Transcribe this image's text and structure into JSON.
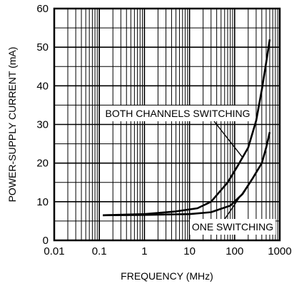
{
  "chart_data": {
    "type": "line",
    "title": "",
    "xlabel": "FREQUENCY (MHz)",
    "ylabel": "POWER-SUPPLY CURRENT (mA)",
    "x_scale": "log",
    "xlim": [
      0.01,
      1000
    ],
    "ylim": [
      0,
      60
    ],
    "x_ticks": [
      "0.01",
      "0.1",
      "1",
      "10",
      "100",
      "1000"
    ],
    "y_ticks": [
      "0",
      "10",
      "20",
      "30",
      "40",
      "50",
      "60"
    ],
    "grid": true,
    "legend": "none",
    "series": [
      {
        "name": "BOTH CHANNELS SWITCHING",
        "x": [
          0.12,
          1,
          5,
          15,
          30,
          70,
          120,
          200,
          300,
          400,
          500,
          600
        ],
        "y": [
          6.5,
          6.8,
          7.5,
          8.3,
          10,
          15,
          19.5,
          24,
          31,
          39,
          46,
          52
        ]
      },
      {
        "name": "ONE SWITCHING",
        "x": [
          0.12,
          1,
          10,
          30,
          80,
          150,
          250,
          400,
          500,
          600
        ],
        "y": [
          6.5,
          6.6,
          6.8,
          7.3,
          9,
          12,
          16,
          20,
          24,
          28
        ]
      }
    ],
    "annotations": [
      {
        "text": "BOTH CHANNELS SWITCHING",
        "series": 0
      },
      {
        "text": "ONE SWITCHING",
        "series": 1
      }
    ]
  }
}
